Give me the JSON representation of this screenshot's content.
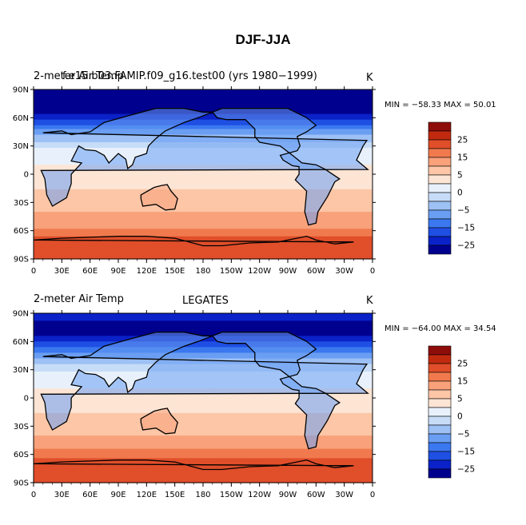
{
  "page_title": "DJF-JJA",
  "palette": [
    "#00008f",
    "#0a22c8",
    "#1f4fe3",
    "#3b78f0",
    "#6a9ef2",
    "#9dc0f5",
    "#c7dcf7",
    "#e8f1fb",
    "#fde5d5",
    "#fcc6a7",
    "#f8a17a",
    "#f07a4e",
    "#e04e2a",
    "#c22a0f",
    "#8e0d0a"
  ],
  "legend_labels": [
    "25",
    "15",
    "5",
    "0",
    "-5",
    "-15",
    "-25"
  ],
  "chart_data": [
    {
      "type": "contour-map",
      "title_left": "2-meter Air Temp",
      "title_center": "f.e15.b03.FAMIP.f09_g16.test00 (yrs 1980-1999)",
      "title_center_overlap_text": "f.e15.b03.FAMIP.f09_g16.test00 (yrs 1980−1999)",
      "units": "K",
      "stats": "MIN = −58.33 MAX =  50.01",
      "min": -58.33,
      "max": 50.01,
      "lat_ticks": [
        "90N",
        "60N",
        "30N",
        "0",
        "30S",
        "60S",
        "90S"
      ],
      "lon_ticks": [
        "0",
        "30E",
        "60E",
        "90E",
        "120E",
        "150E",
        "180",
        "150W",
        "120W",
        "90W",
        "60W",
        "30W",
        "0"
      ],
      "zonal_profile": {
        "lat": [
          90,
          80,
          70,
          60,
          50,
          40,
          30,
          20,
          10,
          0,
          -10,
          -20,
          -30,
          -40,
          -50,
          -60,
          -70,
          -80,
          -90
        ],
        "value": [
          -35,
          -40,
          -40,
          -32,
          -22,
          -14,
          -6,
          -2,
          0,
          1,
          3,
          6,
          8,
          10,
          12,
          16,
          22,
          25,
          25
        ]
      }
    },
    {
      "type": "contour-map",
      "title_left": "2-meter Air Temp",
      "title_center": "LEGATES",
      "units": "K",
      "stats": "MIN = −64.00 MAX =  34.54",
      "min": -64.0,
      "max": 34.54,
      "lat_ticks": [
        "90N",
        "60N",
        "30N",
        "0",
        "30S",
        "60S",
        "90S"
      ],
      "lon_ticks": [
        "0",
        "30E",
        "60E",
        "90E",
        "120E",
        "150E",
        "180",
        "150W",
        "120W",
        "90W",
        "60W",
        "30W",
        "0"
      ],
      "zonal_profile": {
        "lat": [
          90,
          80,
          70,
          60,
          50,
          40,
          30,
          20,
          10,
          0,
          -10,
          -20,
          -30,
          -40,
          -50,
          -60,
          -70,
          -80,
          -90
        ],
        "value": [
          -30,
          -36,
          -38,
          -30,
          -21,
          -13,
          -6,
          -2,
          0,
          1,
          3,
          6,
          8,
          10,
          13,
          18,
          23,
          25,
          25
        ]
      }
    }
  ]
}
